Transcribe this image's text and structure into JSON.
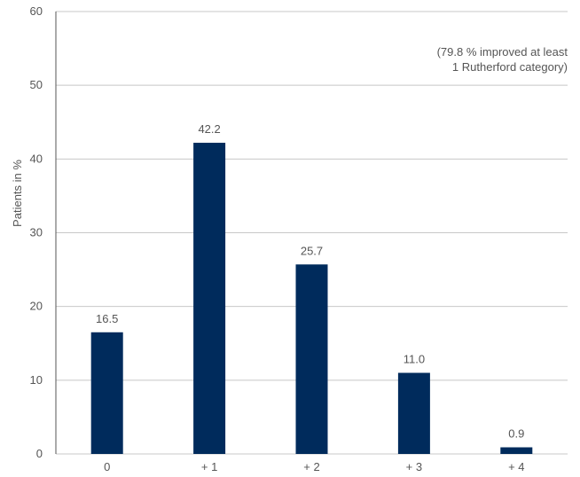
{
  "chart_data": {
    "type": "bar",
    "categories": [
      "0",
      "+ 1",
      "+ 2",
      "+ 3",
      "+ 4"
    ],
    "values": [
      16.5,
      42.2,
      25.7,
      11.0,
      0.9
    ],
    "value_labels": [
      "16.5",
      "42.2",
      "25.7",
      "11.0",
      "0.9"
    ],
    "title": "",
    "xlabel": "",
    "ylabel": "Patients in %",
    "ylim": [
      0,
      60
    ],
    "yticks": [
      0,
      10,
      20,
      30,
      40,
      50,
      60
    ],
    "grid": true,
    "annotation": [
      "(79.8 % improved at least",
      "1 Rutherford category)"
    ],
    "colors": {
      "bar": "#002b5c",
      "grid": "#c8c8c8",
      "axis": "#555555",
      "text": "#555555"
    }
  }
}
